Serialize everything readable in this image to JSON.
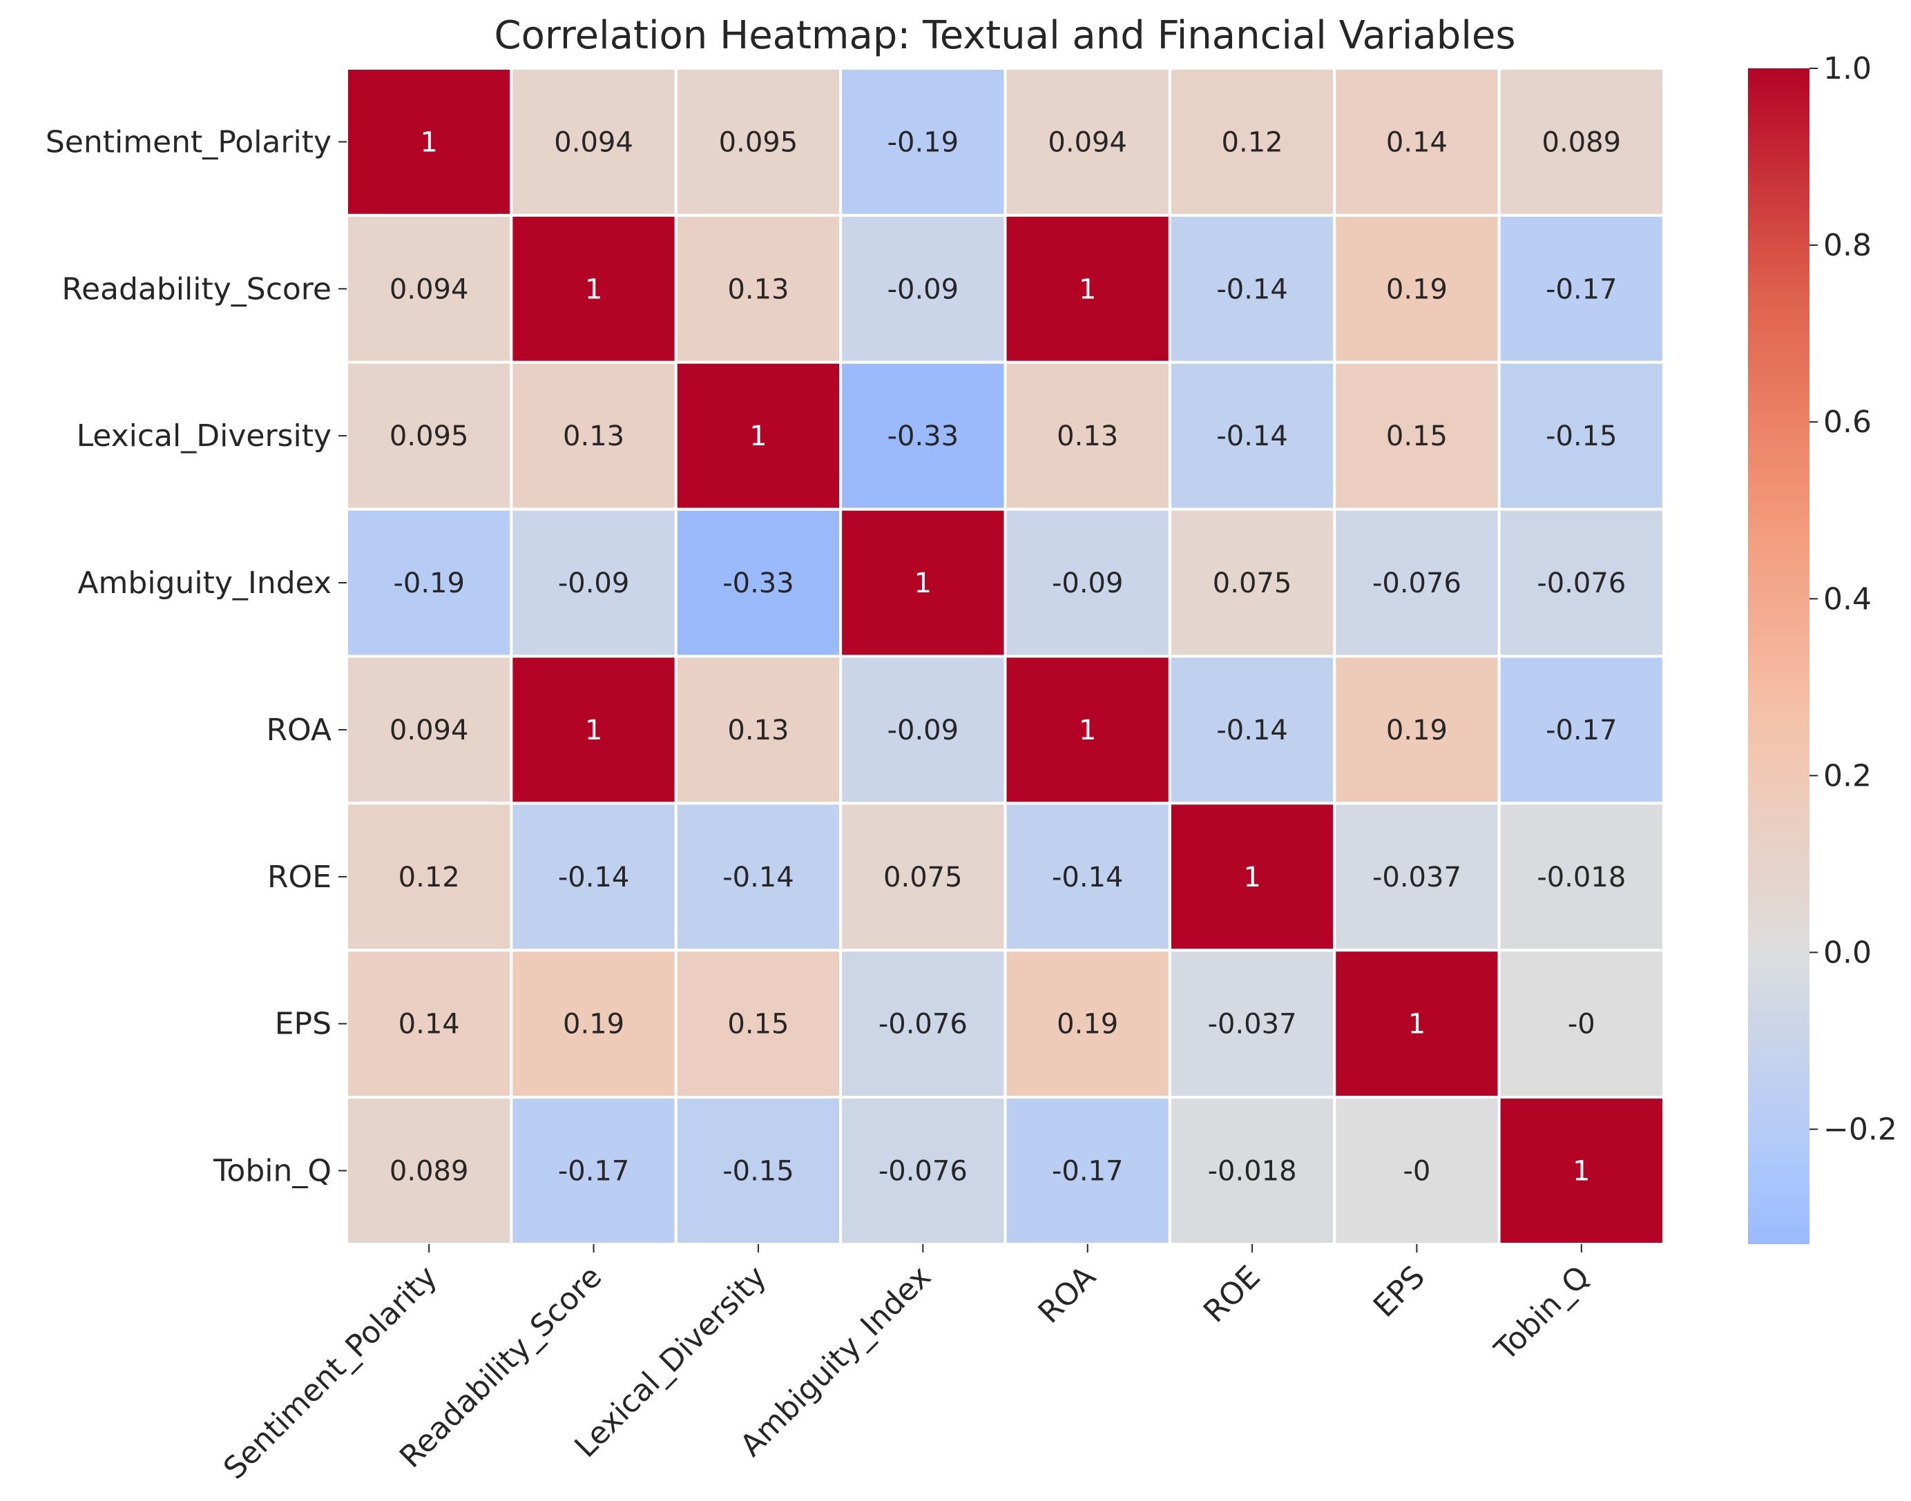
{
  "chart_data": {
    "type": "heatmap",
    "title": "Correlation Heatmap: Textual and Financial Variables",
    "labels": [
      "Sentiment_Polarity",
      "Readability_Score",
      "Lexical_Diversity",
      "Ambiguity_Index",
      "ROA",
      "ROE",
      "EPS",
      "Tobin_Q"
    ],
    "values": [
      [
        "1",
        "0.094",
        "0.095",
        "-0.19",
        "0.094",
        "0.12",
        "0.14",
        "0.089"
      ],
      [
        "0.094",
        "1",
        "0.13",
        "-0.09",
        "1",
        "-0.14",
        "0.19",
        "-0.17"
      ],
      [
        "0.095",
        "0.13",
        "1",
        "-0.33",
        "0.13",
        "-0.14",
        "0.15",
        "-0.15"
      ],
      [
        "-0.19",
        "-0.09",
        "-0.33",
        "1",
        "-0.09",
        "0.075",
        "-0.076",
        "-0.076"
      ],
      [
        "0.094",
        "1",
        "0.13",
        "-0.09",
        "1",
        "-0.14",
        "0.19",
        "-0.17"
      ],
      [
        "0.12",
        "-0.14",
        "-0.14",
        "0.075",
        "-0.14",
        "1",
        "-0.037",
        "-0.018"
      ],
      [
        "0.14",
        "0.19",
        "0.15",
        "-0.076",
        "0.19",
        "-0.037",
        "1",
        "-0"
      ],
      [
        "0.089",
        "-0.17",
        "-0.15",
        "-0.076",
        "-0.17",
        "-0.018",
        "-0",
        "1"
      ]
    ],
    "colormap": "coolwarm",
    "center": 0,
    "vmin": -0.33,
    "vmax": 1.0,
    "colorbar_ticks": [
      "1.0",
      "0.8",
      "0.6",
      "0.4",
      "0.2",
      "0.0",
      "−0.2"
    ],
    "colorbar_tick_values": [
      1.0,
      0.8,
      0.6,
      0.4,
      0.2,
      0.0,
      -0.2
    ]
  }
}
